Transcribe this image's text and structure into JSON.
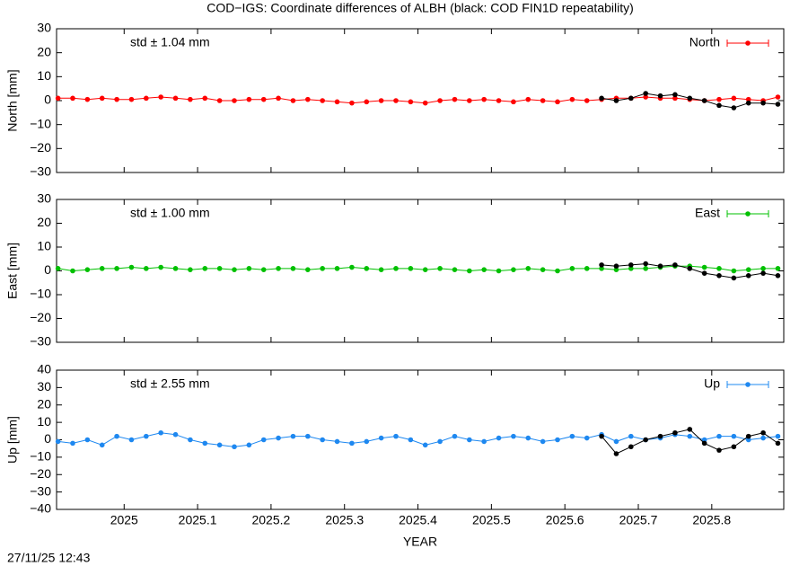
{
  "title": "COD−IGS: Coordinate differences of ALBH (black: COD FIN1D repeatability)",
  "x_label": "YEAR",
  "timestamp": "27/11/25 12:43",
  "chart_data": [
    {
      "type": "line",
      "y_label": "North [mm]",
      "annotation": "std ± 1.04 mm",
      "ylim": [
        -30,
        30
      ],
      "yticks": [
        {
          "value": -30,
          "label": "−30"
        },
        {
          "value": -20,
          "label": "−20"
        },
        {
          "value": -10,
          "label": "−10"
        },
        0,
        10,
        20,
        30
      ],
      "legend": "top-right",
      "series": [
        {
          "name": "North",
          "color": "#ff0000",
          "x": [
            2024.91,
            2024.93,
            2024.95,
            2024.97,
            2024.99,
            2025.01,
            2025.03,
            2025.05,
            2025.07,
            2025.09,
            2025.11,
            2025.13,
            2025.15,
            2025.17,
            2025.19,
            2025.21,
            2025.23,
            2025.25,
            2025.27,
            2025.29,
            2025.31,
            2025.33,
            2025.35,
            2025.37,
            2025.39,
            2025.41,
            2025.43,
            2025.45,
            2025.47,
            2025.49,
            2025.51,
            2025.53,
            2025.55,
            2025.57,
            2025.59,
            2025.61,
            2025.63,
            2025.65,
            2025.67,
            2025.69,
            2025.71,
            2025.73,
            2025.75,
            2025.77,
            2025.79,
            2025.81,
            2025.83,
            2025.85,
            2025.87,
            2025.89
          ],
          "values": [
            1,
            1,
            0.5,
            1,
            0.5,
            0.5,
            1,
            1.5,
            1,
            0.5,
            1,
            0,
            0,
            0.5,
            0.5,
            1,
            0,
            0.5,
            0,
            -0.5,
            -1,
            -0.5,
            0,
            0,
            -0.5,
            -1,
            0,
            0.5,
            0,
            0.5,
            0,
            -0.5,
            0.5,
            0,
            -0.5,
            0.5,
            0,
            0.5,
            1,
            1,
            1.5,
            1,
            1,
            0.5,
            0,
            0.5,
            1,
            0.5,
            0,
            1.5
          ]
        },
        {
          "color": "#000000",
          "x": [
            2025.65,
            2025.67,
            2025.69,
            2025.71,
            2025.73,
            2025.75,
            2025.77,
            2025.79,
            2025.81,
            2025.83,
            2025.85,
            2025.87,
            2025.89
          ],
          "values": [
            1,
            0,
            1,
            3,
            2,
            2.5,
            1,
            0,
            -2,
            -3,
            -1,
            -1,
            -1.5
          ]
        }
      ]
    },
    {
      "type": "line",
      "y_label": "East [mm]",
      "annotation": "std ± 1.00 mm",
      "ylim": [
        -30,
        30
      ],
      "yticks": [
        {
          "value": -30,
          "label": "−30"
        },
        {
          "value": -20,
          "label": "−20"
        },
        {
          "value": -10,
          "label": "−10"
        },
        0,
        10,
        20,
        30
      ],
      "legend": "top-right",
      "series": [
        {
          "name": "East",
          "color": "#00c000",
          "x": [
            2024.91,
            2024.93,
            2024.95,
            2024.97,
            2024.99,
            2025.01,
            2025.03,
            2025.05,
            2025.07,
            2025.09,
            2025.11,
            2025.13,
            2025.15,
            2025.17,
            2025.19,
            2025.21,
            2025.23,
            2025.25,
            2025.27,
            2025.29,
            2025.31,
            2025.33,
            2025.35,
            2025.37,
            2025.39,
            2025.41,
            2025.43,
            2025.45,
            2025.47,
            2025.49,
            2025.51,
            2025.53,
            2025.55,
            2025.57,
            2025.59,
            2025.61,
            2025.63,
            2025.65,
            2025.67,
            2025.69,
            2025.71,
            2025.73,
            2025.75,
            2025.77,
            2025.79,
            2025.81,
            2025.83,
            2025.85,
            2025.87,
            2025.89
          ],
          "values": [
            1,
            0,
            0.5,
            1,
            1,
            1.5,
            1,
            1.5,
            1,
            0.5,
            1,
            1,
            0.5,
            1,
            0.5,
            1,
            1,
            0.5,
            1,
            1,
            1.5,
            1,
            0.5,
            1,
            1,
            0.5,
            1,
            0.5,
            0,
            0.5,
            0,
            0.5,
            1,
            0.5,
            0,
            1,
            1,
            1,
            0.5,
            1,
            1,
            1.5,
            2,
            2,
            1.5,
            1,
            0,
            0.5,
            1,
            1
          ]
        },
        {
          "color": "#000000",
          "x": [
            2025.65,
            2025.67,
            2025.69,
            2025.71,
            2025.73,
            2025.75,
            2025.77,
            2025.79,
            2025.81,
            2025.83,
            2025.85,
            2025.87,
            2025.89
          ],
          "values": [
            2.5,
            2,
            2.5,
            3,
            2,
            2.5,
            1,
            -1,
            -2,
            -3,
            -2,
            -1,
            -2
          ]
        }
      ]
    },
    {
      "type": "line",
      "y_label": "Up [mm]",
      "annotation": "std ± 2.55 mm",
      "ylim": [
        -40,
        40
      ],
      "yticks": [
        {
          "value": -40,
          "label": "−40"
        },
        {
          "value": -30,
          "label": "−30"
        },
        {
          "value": -20,
          "label": "−20"
        },
        {
          "value": -10,
          "label": "−10"
        },
        0,
        10,
        20,
        30,
        40
      ],
      "xlim": [
        2024.908,
        2025.898
      ],
      "xticks": [
        2025,
        2025.1,
        2025.2,
        2025.3,
        2025.4,
        2025.5,
        2025.6,
        2025.7,
        2025.8
      ],
      "legend": "top-right",
      "series": [
        {
          "name": "Up",
          "color": "#1e88f0",
          "x": [
            2024.91,
            2024.93,
            2024.95,
            2024.97,
            2024.99,
            2025.01,
            2025.03,
            2025.05,
            2025.07,
            2025.09,
            2025.11,
            2025.13,
            2025.15,
            2025.17,
            2025.19,
            2025.21,
            2025.23,
            2025.25,
            2025.27,
            2025.29,
            2025.31,
            2025.33,
            2025.35,
            2025.37,
            2025.39,
            2025.41,
            2025.43,
            2025.45,
            2025.47,
            2025.49,
            2025.51,
            2025.53,
            2025.55,
            2025.57,
            2025.59,
            2025.61,
            2025.63,
            2025.65,
            2025.67,
            2025.69,
            2025.71,
            2025.73,
            2025.75,
            2025.77,
            2025.79,
            2025.81,
            2025.83,
            2025.85,
            2025.87,
            2025.89
          ],
          "values": [
            -1,
            -2,
            0,
            -3,
            2,
            0,
            2,
            4,
            3,
            0,
            -2,
            -3,
            -4,
            -3,
            0,
            1,
            2,
            2,
            0,
            -1,
            -2,
            -1,
            1,
            2,
            0,
            -3,
            -1,
            2,
            0,
            -1,
            1,
            2,
            1,
            -1,
            0,
            2,
            1,
            3,
            -1,
            2,
            0,
            1,
            3,
            2,
            0,
            2,
            2,
            0,
            1,
            2
          ]
        },
        {
          "color": "#000000",
          "x": [
            2025.65,
            2025.67,
            2025.69,
            2025.71,
            2025.73,
            2025.75,
            2025.77,
            2025.79,
            2025.81,
            2025.83,
            2025.85,
            2025.87,
            2025.89
          ],
          "values": [
            2,
            -8,
            -4,
            0,
            2,
            4,
            6,
            -2,
            -6,
            -4,
            2,
            4,
            -2
          ]
        }
      ]
    }
  ]
}
